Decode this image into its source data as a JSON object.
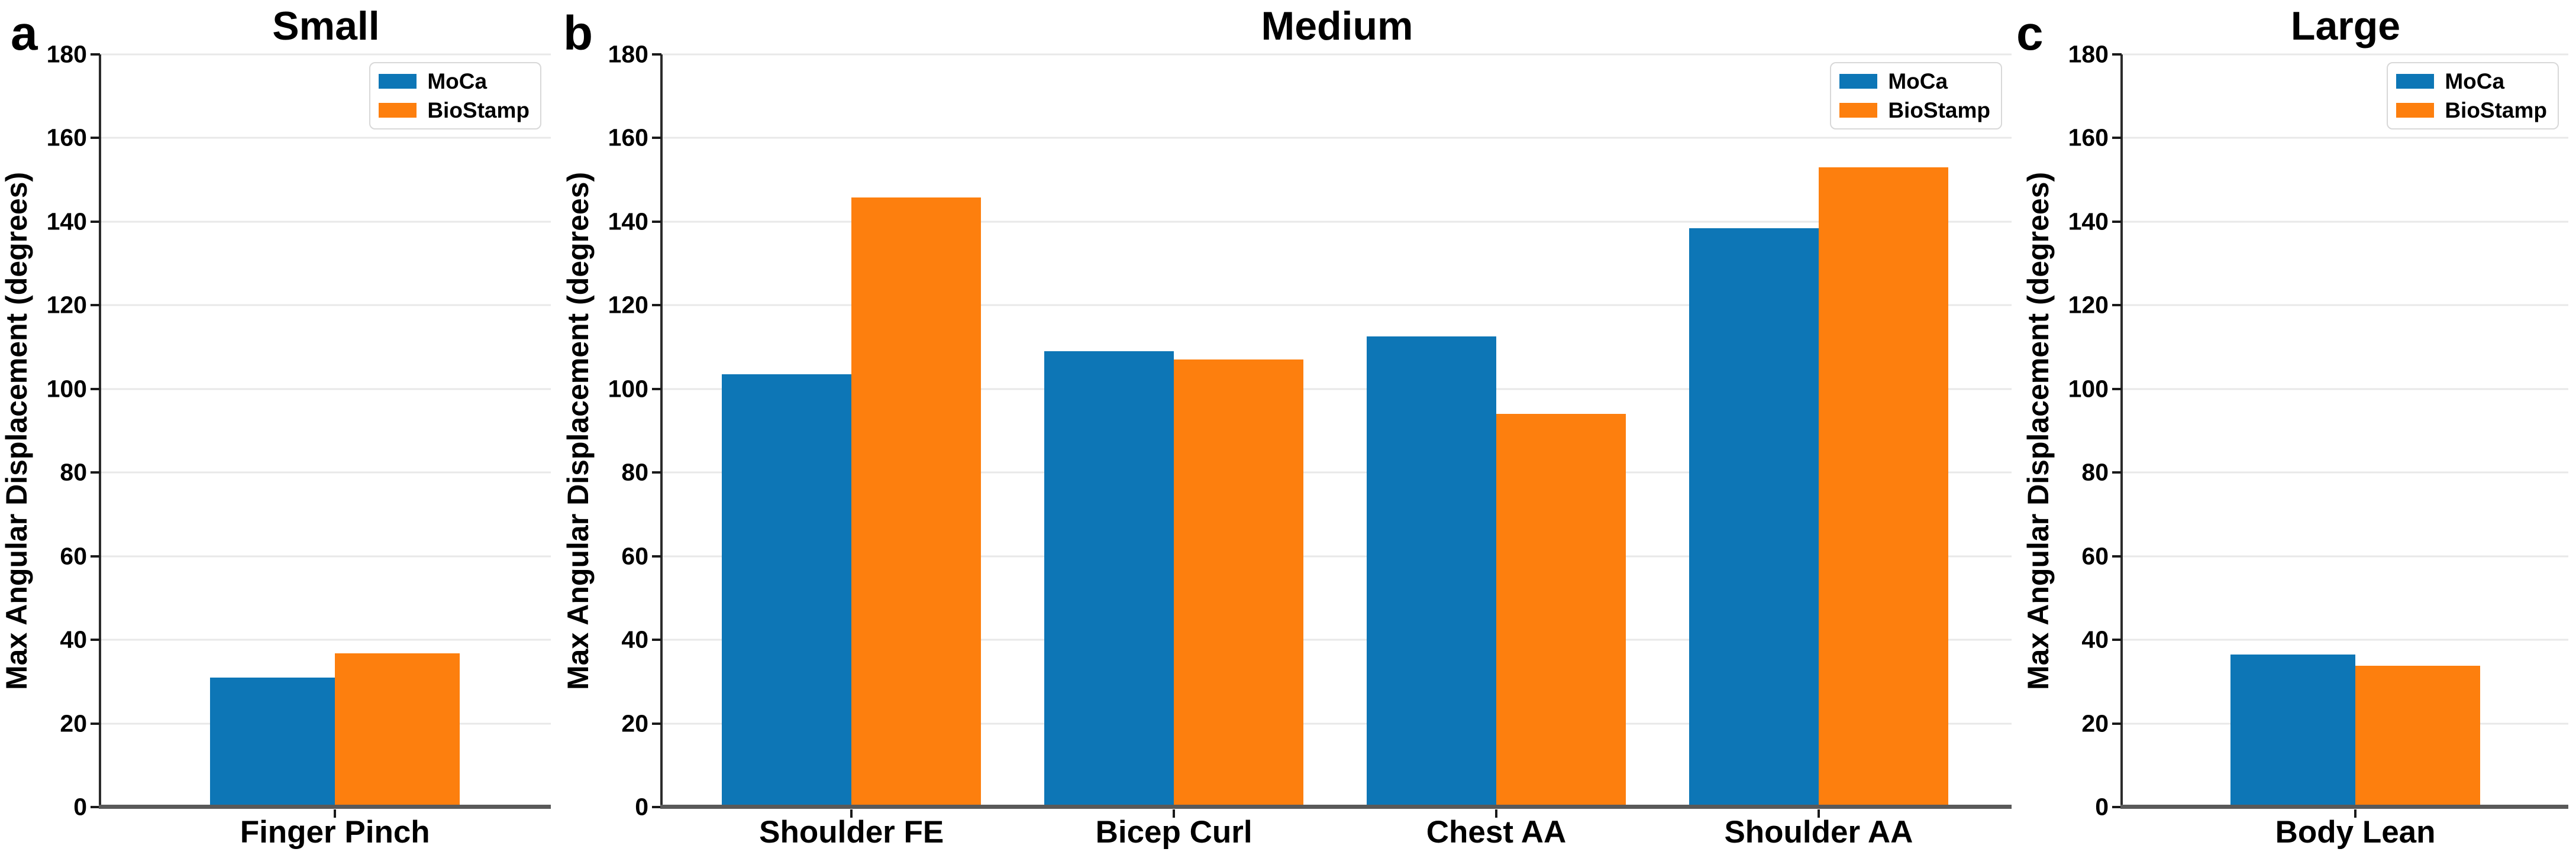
{
  "figure": {
    "background": "#ffffff",
    "y_axis_label": "Max Angular Displacement (degrees)"
  },
  "colors": {
    "moca_blue": "#0d76b6",
    "biostamp_orange": "#fd7f0e",
    "gridline": "#e8e8e8",
    "left_spine": "#2b2b2b",
    "bottom_axis": "#595959",
    "legend_border": "#d8d8d8",
    "text": "#000000"
  },
  "legend": {
    "items": [
      {
        "label": "MoCa",
        "color": "#0d76b6"
      },
      {
        "label": "BioStamp",
        "color": "#fd7f0e"
      }
    ],
    "position": "upper right"
  },
  "chart_data": [
    {
      "type": "bar",
      "panel_letter": "a",
      "title": "Small",
      "categories": [
        "Finger Pinch"
      ],
      "series": [
        {
          "name": "MoCa",
          "color": "#0d76b6",
          "values": [
            31
          ]
        },
        {
          "name": "BioStamp",
          "color": "#fd7f0e",
          "values": [
            36.8
          ]
        }
      ],
      "xlabel": "",
      "ylabel": "Max Angular Displacement (degrees)",
      "ylim": [
        0,
        180
      ],
      "yticks": [
        0,
        20,
        40,
        60,
        80,
        100,
        120,
        140,
        160,
        180
      ],
      "grid": true,
      "legend_position": "upper right"
    },
    {
      "type": "bar",
      "panel_letter": "b",
      "title": "Medium",
      "categories": [
        "Shoulder FE",
        "Bicep Curl",
        "Chest AA",
        "Shoulder AA"
      ],
      "series": [
        {
          "name": "MoCa",
          "color": "#0d76b6",
          "values": [
            103.5,
            109,
            112.5,
            138.5
          ]
        },
        {
          "name": "BioStamp",
          "color": "#fd7f0e",
          "values": [
            145.8,
            107,
            94,
            153
          ]
        }
      ],
      "xlabel": "",
      "ylabel": "Max Angular Displacement (degrees)",
      "ylim": [
        0,
        180
      ],
      "yticks": [
        0,
        20,
        40,
        60,
        80,
        100,
        120,
        140,
        160,
        180
      ],
      "grid": true,
      "legend_position": "upper right"
    },
    {
      "type": "bar",
      "panel_letter": "c",
      "title": "Large",
      "categories": [
        "Body Lean"
      ],
      "series": [
        {
          "name": "MoCa",
          "color": "#0d76b6",
          "values": [
            36.5
          ]
        },
        {
          "name": "BioStamp",
          "color": "#fd7f0e",
          "values": [
            33.8
          ]
        }
      ],
      "xlabel": "",
      "ylabel": "Max Angular Displacement (degrees)",
      "ylim": [
        0,
        180
      ],
      "yticks": [
        0,
        20,
        40,
        60,
        80,
        100,
        120,
        140,
        160,
        180
      ],
      "grid": true,
      "legend_position": "upper right"
    }
  ]
}
